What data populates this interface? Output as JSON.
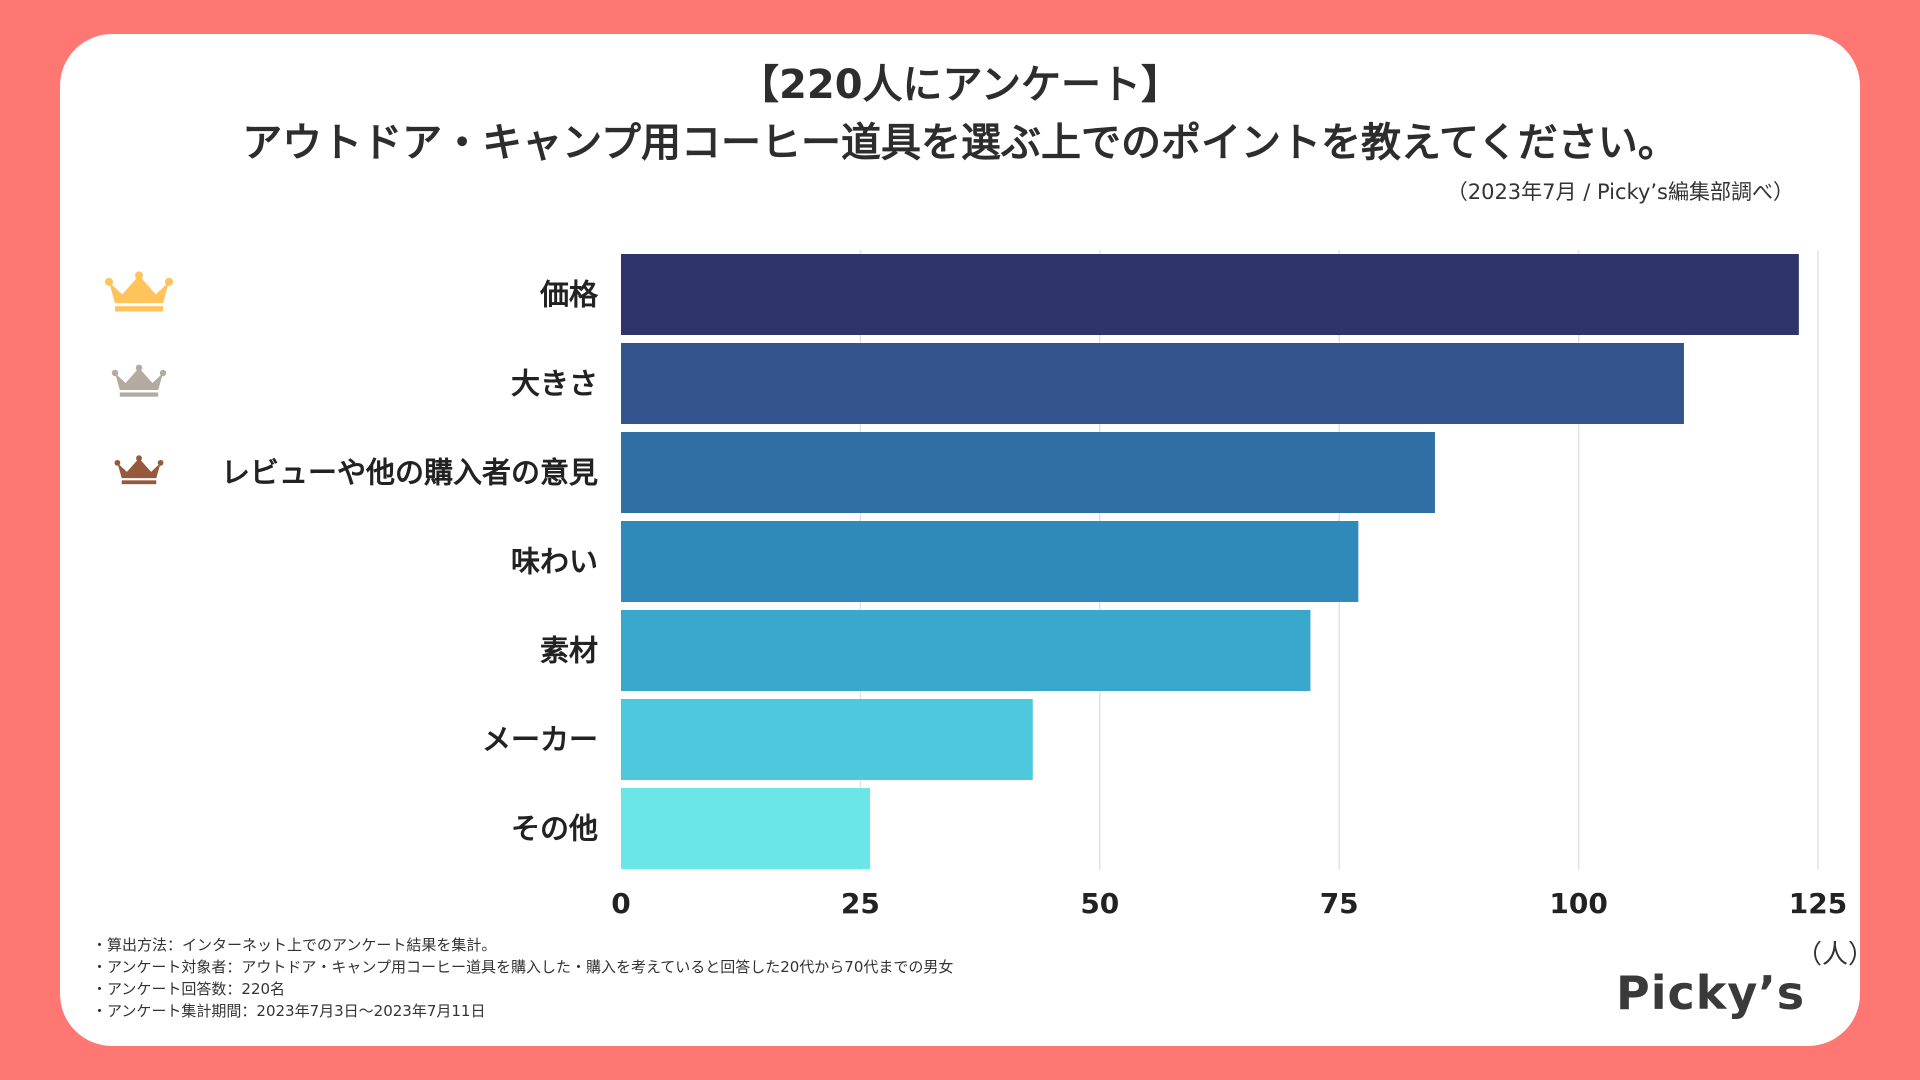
{
  "header": {
    "title_line1": "【220人にアンケート】",
    "title_line2": "アウトドア・キャンプ用コーヒー道具を選ぶ上でのポイントを教えてください。",
    "source": "（2023年7月 / Picky’s編集部調べ）"
  },
  "chart_data": {
    "type": "bar",
    "orientation": "horizontal",
    "categories": [
      "価格",
      "大きさ",
      "レビューや他の購入者の意見",
      "味わい",
      "素材",
      "メーカー",
      "その他"
    ],
    "values": [
      123,
      111,
      85,
      77,
      72,
      43,
      26
    ],
    "xlim": [
      0,
      125
    ],
    "xticks": [
      "0",
      "25",
      "50",
      "75",
      "100",
      "125"
    ],
    "tick_values": [
      0,
      25,
      50,
      75,
      100,
      125
    ],
    "unit": "（人）",
    "grid": true,
    "bar_colors": [
      "#2f356b",
      "#32538b",
      "#2f6fa3",
      "#2f8ab9",
      "#3aa7cc",
      "#4ec8dc",
      "#6ae6e8"
    ]
  },
  "ranks": [
    {
      "icon": "gold-crown-icon",
      "color": "#ffc35c"
    },
    {
      "icon": "silver-crown-icon",
      "color": "#b3aaa0"
    },
    {
      "icon": "bronze-crown-icon",
      "color": "#96593b"
    }
  ],
  "footnotes": [
    "・算出方法：インターネット上でのアンケート結果を集計。",
    "・アンケート対象者：アウトドア・キャンプ用コーヒー道具を購入した・購入を考えていると回答した20代から70代までの男女",
    "・アンケート回答数：220名",
    "・アンケート集計期間：2023年7月3日〜2023年7月11日"
  ],
  "logo": "Picky’s"
}
